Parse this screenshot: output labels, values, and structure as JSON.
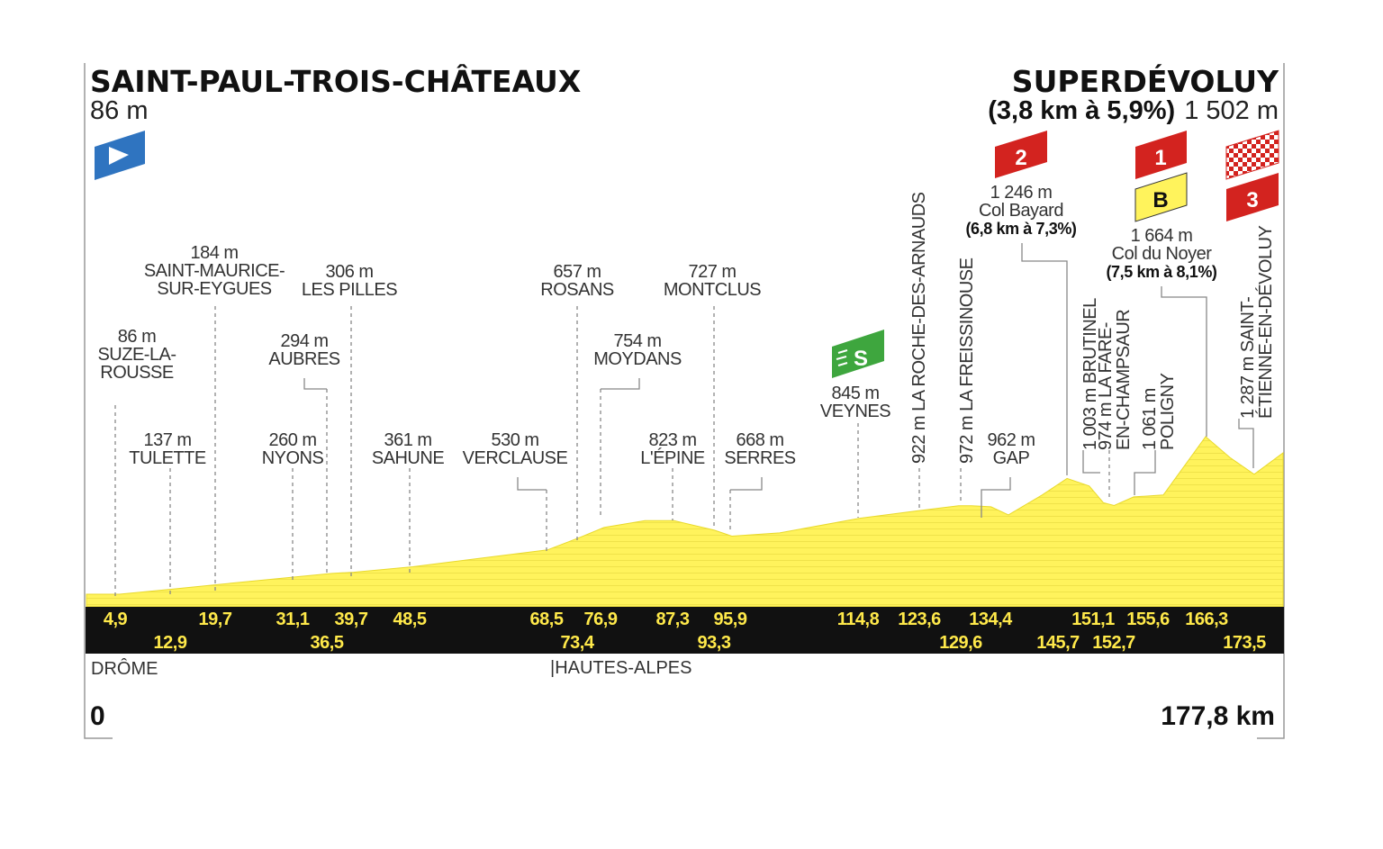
{
  "start": {
    "name": "SAINT-PAUL-TROIS-CHÂTEAUX",
    "altitude": "86 m",
    "km": "0"
  },
  "finish": {
    "name": "SUPERDÉVOLUY",
    "climb": "(3,8 km à 5,9%)",
    "altitude": "1 502 m",
    "km": "177,8 km"
  },
  "departments": [
    "DRÔME",
    "|HAUTES-ALPES"
  ],
  "icons": {
    "start_flag": "start-flag-icon",
    "sprint": "sprint-icon",
    "climb_cat2": "category-2-climb-icon",
    "climb_cat1": "category-1-climb-icon",
    "bonus": "bonus-b-icon",
    "finish_flag": "checkered-finish-flag-icon",
    "climb_cat3": "category-3-climb-icon"
  },
  "badges": {
    "cat2": "2",
    "cat1": "1",
    "bonus": "B",
    "cat3": "3",
    "sprint": "S"
  },
  "colors": {
    "profile": "#fff35c",
    "band": "#111111",
    "km_text": "#ffe94a",
    "start_flag": "#2f74c0",
    "climb": "#d3231f",
    "bonus": "#fff35c",
    "sprint": "#3ea63e"
  },
  "passages": [
    {
      "id": "suze",
      "altitude": "86 m",
      "name": [
        "SUZE-LA-",
        "ROUSSE"
      ],
      "km_label": "4,9"
    },
    {
      "id": "tulette",
      "altitude": "137 m",
      "name": [
        "TULETTE"
      ],
      "km_label": "12,9"
    },
    {
      "id": "saint-maurice",
      "altitude": "184 m",
      "name": [
        "SAINT-MAURICE-",
        "SUR-EYGUES"
      ],
      "km_label": "19,7"
    },
    {
      "id": "nyons",
      "altitude": "260 m",
      "name": [
        "NYONS"
      ],
      "km_label": "31,1"
    },
    {
      "id": "aubres",
      "altitude": "294 m",
      "name": [
        "AUBRES"
      ],
      "km_label": "36,5"
    },
    {
      "id": "les-pilles",
      "altitude": "306 m",
      "name": [
        "LES PILLES"
      ],
      "km_label": "39,7"
    },
    {
      "id": "sahune",
      "altitude": "361 m",
      "name": [
        "SAHUNE"
      ],
      "km_label": "48,5"
    },
    {
      "id": "verclause",
      "altitude": "530 m",
      "name": [
        "VERCLAUSE"
      ],
      "km_label": "68,5"
    },
    {
      "id": "rosans",
      "altitude": "657 m",
      "name": [
        "ROSANS"
      ],
      "km_label": "73,4"
    },
    {
      "id": "moydans",
      "altitude": "754 m",
      "name": [
        "MOYDANS"
      ],
      "km_label": "76,9"
    },
    {
      "id": "lepine",
      "altitude": "823 m",
      "name": [
        "L'ÉPINE"
      ],
      "km_label": "87,3"
    },
    {
      "id": "montclus",
      "altitude": "727 m",
      "name": [
        "MONTCLUS"
      ],
      "km_label": "93,3"
    },
    {
      "id": "serres",
      "altitude": "668 m",
      "name": [
        "SERRES"
      ],
      "km_label": "95,9"
    },
    {
      "id": "veynes",
      "altitude": "845 m",
      "name": [
        "VEYNES"
      ],
      "km_label": "114,8"
    },
    {
      "id": "roche",
      "altitude": "",
      "name": [
        "922 m LA ROCHE-DES-ARNAUDS"
      ],
      "km_label": "123,6"
    },
    {
      "id": "freissinouse",
      "altitude": "",
      "name": [
        "972 m LA FREISSINOUSE"
      ],
      "km_label": "129,6"
    },
    {
      "id": "gap",
      "altitude": "962 m",
      "name": [
        "GAP"
      ],
      "km_label": "134,4"
    },
    {
      "id": "col-bayard",
      "altitude": "1 246 m",
      "name": [
        "Col Bayard"
      ],
      "climb": "(6,8 km à 7,3%)",
      "km_label": "145,7"
    },
    {
      "id": "brutinel",
      "altitude": "",
      "name": [
        "1 003 m BRUTINEL"
      ],
      "km_label": "151,1"
    },
    {
      "id": "fare",
      "altitude": "",
      "name": [
        "974 m LA FARE-",
        "EN-CHAMPSAUR"
      ],
      "km_label": "152,7"
    },
    {
      "id": "poligny",
      "altitude": "",
      "name": [
        "1 061 m",
        "POLIGNY"
      ],
      "km_label": "155,6"
    },
    {
      "id": "col-noyer",
      "altitude": "1 664 m",
      "name": [
        "Col du Noyer"
      ],
      "climb": "(7,5 km à 8,1%)",
      "km_label": "166,3"
    },
    {
      "id": "saint-etienne",
      "altitude": "",
      "name": [
        "1 287 m SAINT-",
        "ÉTIENNE-EN-DÉVOLUY"
      ],
      "km_label": "173,5"
    }
  ],
  "chart_data": {
    "type": "area",
    "xlabel": "",
    "ylabel": "",
    "xlim": [
      0,
      177.8
    ],
    "ylim": [
      0,
      1700
    ],
    "grid": false,
    "series": [
      {
        "x": [
          0,
          4.9,
          12.9,
          19.7,
          31.1,
          36.5,
          39.7,
          48.5,
          68.5,
          73.4,
          76.9,
          83,
          87.3,
          93.3,
          95.9,
          103,
          114.8,
          123.6,
          129.6,
          131.5,
          134.4,
          137,
          142,
          145.7,
          149,
          151.1,
          152.7,
          155.6,
          160,
          166.3,
          170,
          173.5,
          177.8
        ],
        "y": [
          86,
          86,
          137,
          184,
          260,
          294,
          306,
          361,
          530,
          657,
          754,
          823,
          823,
          727,
          668,
          700,
          845,
          922,
          972,
          972,
          962,
          880,
          1080,
          1246,
          1170,
          1003,
          974,
          1061,
          1080,
          1664,
          1450,
          1287,
          1502
        ]
      }
    ]
  }
}
